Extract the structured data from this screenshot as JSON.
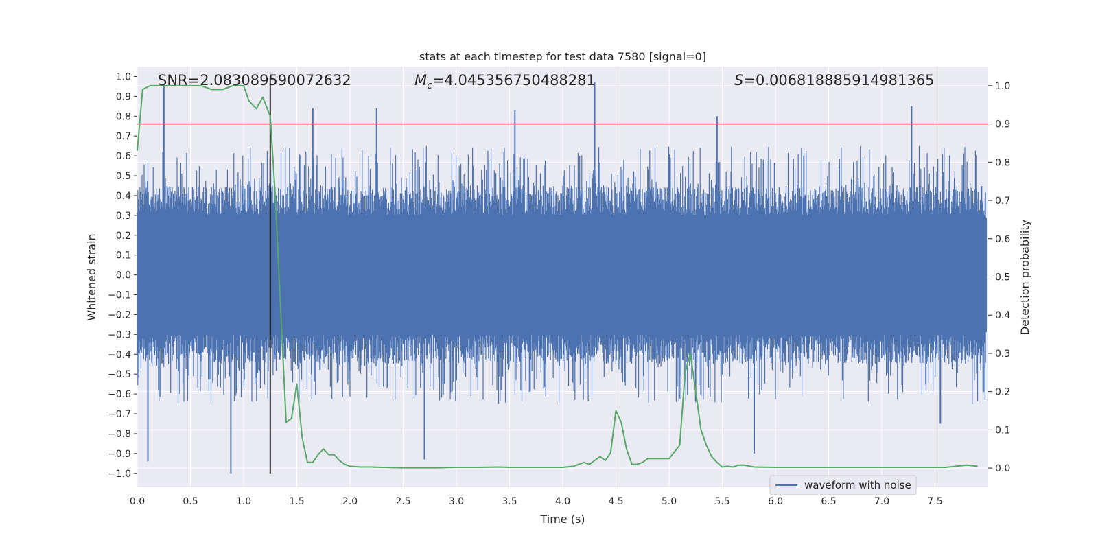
{
  "chart_data": {
    "type": "line",
    "title": "stats at each timestep for test data 7580 [signal=0]",
    "xlabel": "Time (s)",
    "ylabel_left": "Whitened strain",
    "ylabel_right": "Detection probability",
    "xlim": [
      0.0,
      8.0
    ],
    "ylim_left": [
      -1.07,
      1.05
    ],
    "ylim_right": [
      -0.05,
      1.05
    ],
    "x_ticks": [
      "0.0",
      "0.5",
      "1.0",
      "1.5",
      "2.0",
      "2.5",
      "3.0",
      "3.5",
      "4.0",
      "4.5",
      "5.0",
      "5.5",
      "6.0",
      "6.5",
      "7.0",
      "7.5"
    ],
    "y_ticks_left": [
      "1.0",
      "0.9",
      "0.8",
      "0.7",
      "0.6",
      "0.5",
      "0.4",
      "0.3",
      "0.2",
      "0.1",
      "0.0",
      "−0.1",
      "−0.2",
      "−0.3",
      "−0.4",
      "−0.5",
      "−0.6",
      "−0.7",
      "−0.8",
      "−0.9",
      "−1.0"
    ],
    "y_ticks_right": [
      "0.0",
      "0.1",
      "0.2",
      "0.3",
      "0.4",
      "0.5",
      "0.6",
      "0.7",
      "0.8",
      "0.9",
      "1.0"
    ],
    "annotations": {
      "snr": "SNR=2.083089590072632",
      "mc_symbol": "M",
      "mc_subscript": "c",
      "mc_value": "=4.045356750488281",
      "s_symbol": "S",
      "s_value": "=0.006818885914981365"
    },
    "series": [
      {
        "name": "waveform with noise",
        "axis": "left",
        "kind": "dense-noise",
        "color": "#4c72b0",
        "sample_rate_hz": 2048,
        "dense_band_approx": [
          -0.4,
          0.4
        ],
        "notable_peaks": [
          {
            "x": 0.25,
            "y": 0.96
          },
          {
            "x": 0.88,
            "y": -1.0
          },
          {
            "x": 1.65,
            "y": 0.84
          },
          {
            "x": 2.25,
            "y": 0.84
          },
          {
            "x": 3.55,
            "y": 0.83
          },
          {
            "x": 4.3,
            "y": 0.97
          },
          {
            "x": 5.45,
            "y": 0.8
          },
          {
            "x": 5.8,
            "y": -0.9
          },
          {
            "x": 7.28,
            "y": 0.85
          },
          {
            "x": 0.1,
            "y": -0.94
          },
          {
            "x": 2.7,
            "y": -0.93
          },
          {
            "x": 7.55,
            "y": -0.75
          }
        ]
      },
      {
        "name": "",
        "axis": "right",
        "kind": "line",
        "color": "#55a868",
        "x": [
          0.0,
          0.05,
          0.12,
          0.2,
          0.3,
          0.4,
          0.5,
          0.6,
          0.7,
          0.8,
          0.9,
          1.0,
          1.05,
          1.12,
          1.18,
          1.25,
          1.3,
          1.35,
          1.4,
          1.45,
          1.5,
          1.55,
          1.6,
          1.65,
          1.7,
          1.75,
          1.8,
          1.85,
          1.9,
          1.95,
          2.0,
          2.1,
          2.2,
          2.3,
          2.5,
          2.8,
          3.0,
          3.2,
          3.4,
          3.5,
          3.8,
          4.0,
          4.1,
          4.2,
          4.25,
          4.3,
          4.35,
          4.4,
          4.45,
          4.5,
          4.55,
          4.6,
          4.65,
          4.7,
          4.75,
          4.8,
          4.9,
          5.0,
          5.1,
          5.15,
          5.2,
          5.25,
          5.3,
          5.35,
          5.4,
          5.45,
          5.5,
          5.55,
          5.6,
          5.65,
          5.7,
          5.8,
          6.0,
          6.3,
          6.5,
          6.7,
          7.0,
          7.3,
          7.6,
          7.8,
          7.9
        ],
        "y": [
          0.83,
          0.99,
          1.0,
          1.0,
          1.0,
          1.0,
          1.0,
          1.0,
          0.99,
          0.99,
          1.0,
          1.0,
          0.96,
          0.94,
          0.97,
          0.92,
          0.7,
          0.4,
          0.12,
          0.13,
          0.22,
          0.08,
          0.015,
          0.015,
          0.035,
          0.05,
          0.035,
          0.035,
          0.02,
          0.01,
          0.005,
          0.003,
          0.003,
          0.002,
          0.001,
          0.001,
          0.002,
          0.002,
          0.003,
          0.002,
          0.002,
          0.002,
          0.005,
          0.015,
          0.01,
          0.02,
          0.03,
          0.02,
          0.04,
          0.15,
          0.12,
          0.05,
          0.01,
          0.01,
          0.015,
          0.025,
          0.025,
          0.025,
          0.06,
          0.25,
          0.3,
          0.2,
          0.1,
          0.06,
          0.03,
          0.015,
          0.003,
          0.005,
          0.003,
          0.008,
          0.008,
          0.003,
          0.002,
          0.002,
          0.002,
          0.002,
          0.002,
          0.002,
          0.002,
          0.008,
          0.005
        ]
      }
    ],
    "reference_lines": [
      {
        "orientation": "horizontal",
        "axis": "right",
        "value": 0.9,
        "color": "#c44e52"
      },
      {
        "orientation": "vertical",
        "value": 1.25,
        "color": "#000000"
      }
    ],
    "grid": true,
    "legend": {
      "position": "lower-right",
      "entries": [
        "waveform with noise"
      ]
    },
    "colors": {
      "background": "#eaeaf2",
      "grid": "#ffffff",
      "waveform": "#4c72b0",
      "probability": "#55a868",
      "threshold": "#c44e52",
      "marker": "#000000"
    }
  }
}
